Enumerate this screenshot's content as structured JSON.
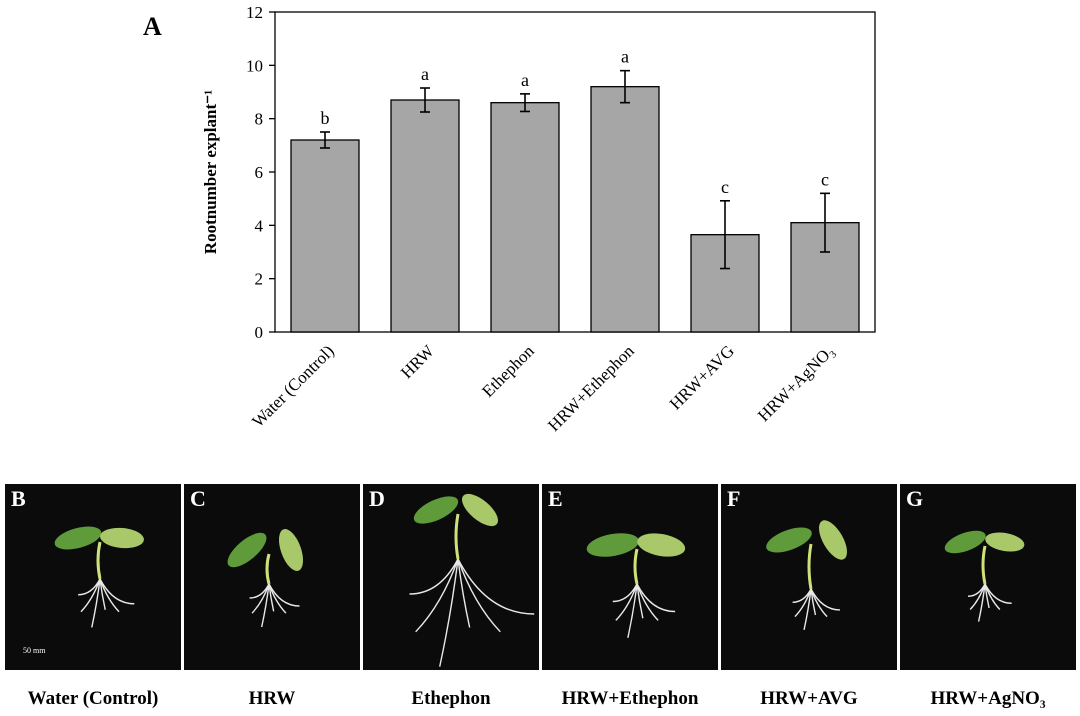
{
  "panel_label": "A",
  "chart_data": {
    "type": "bar",
    "categories": [
      "Water (Control)",
      "HRW",
      "Ethephon",
      "HRW+Ethephon",
      "HRW+AVG",
      "HRW+AgNO3"
    ],
    "category_display": [
      "Water (Control)",
      "HRW",
      "Ethephon",
      "HRW+Ethephon",
      "HRW+AVG",
      "HRW+AgNO₃"
    ],
    "values": [
      7.2,
      8.7,
      8.6,
      9.2,
      3.65,
      4.1
    ],
    "errors": [
      0.3,
      0.45,
      0.33,
      0.6,
      1.27,
      1.1
    ],
    "significance": [
      "b",
      "a",
      "a",
      "a",
      "c",
      "c"
    ],
    "ylabel": "Rootnumber explant⁻¹",
    "ylim": [
      0,
      12
    ],
    "yticks": [
      0,
      2,
      4,
      6,
      8,
      10,
      12
    ],
    "bar_color": "#a6a6a6",
    "grid": false
  },
  "photo_panels": [
    {
      "letter": "B",
      "caption": "Water (Control)",
      "scale_label": "50 mm"
    },
    {
      "letter": "C",
      "caption": "HRW",
      "scale_label": ""
    },
    {
      "letter": "D",
      "caption": "Ethephon",
      "scale_label": ""
    },
    {
      "letter": "E",
      "caption": "HRW+Ethephon",
      "scale_label": ""
    },
    {
      "letter": "F",
      "caption": "HRW+AVG",
      "scale_label": ""
    },
    {
      "letter": "G",
      "caption": "HRW+AgNO₃",
      "scale_label": ""
    }
  ],
  "colors": {
    "leaf": "#5f9b3a",
    "leaf_light": "#a9c86a",
    "stem": "#cfe27a",
    "root": "#e8e8e8",
    "background": "#0b0b0b"
  }
}
